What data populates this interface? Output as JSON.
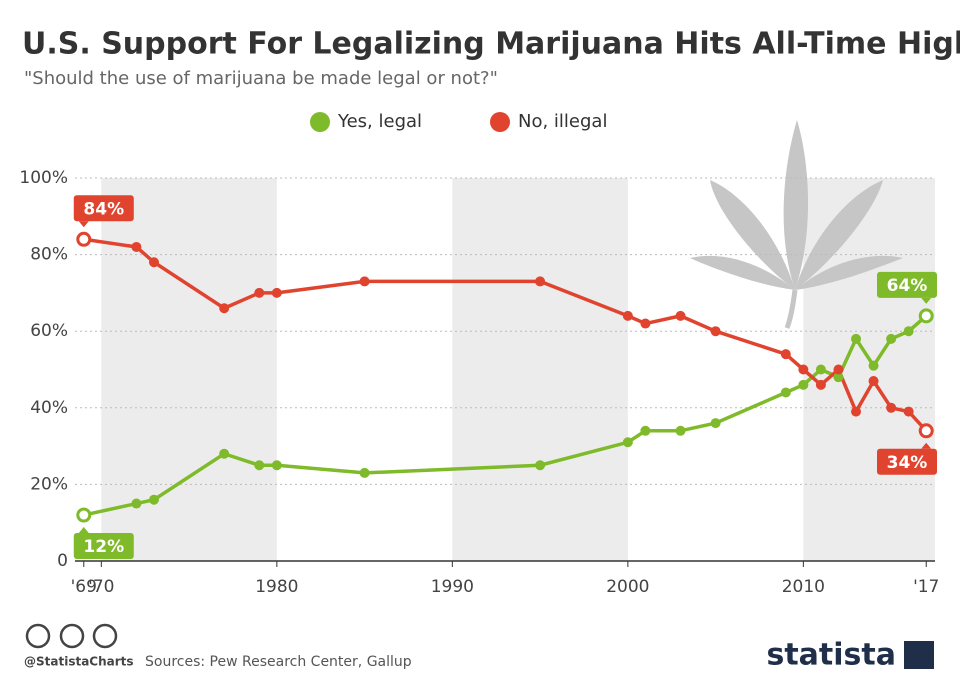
{
  "chart_data": {
    "type": "line",
    "title": "U.S. Support For Legalizing Marijuana Hits All-Time High",
    "subtitle": "\"Should the use of marijuana be made legal or not?\"",
    "x": [
      1969,
      1972,
      1973,
      1977,
      1979,
      1980,
      1985,
      1995,
      2000,
      2001,
      2003,
      2005,
      2009,
      2010,
      2011,
      2012,
      2013,
      2014,
      2015,
      2016,
      2017
    ],
    "series": [
      {
        "name": "Yes, legal",
        "color": "#7fba2a",
        "values": [
          12,
          15,
          16,
          28,
          25,
          25,
          23,
          25,
          31,
          34,
          34,
          36,
          44,
          46,
          50,
          48,
          58,
          51,
          58,
          60,
          64
        ],
        "value_labels": [
          "12%",
          null,
          null,
          null,
          null,
          null,
          null,
          null,
          null,
          null,
          null,
          null,
          null,
          null,
          null,
          null,
          null,
          null,
          null,
          null,
          "64%"
        ]
      },
      {
        "name": "No, illegal",
        "color": "#e0442f",
        "values": [
          84,
          82,
          78,
          66,
          70,
          70,
          73,
          73,
          64,
          62,
          64,
          60,
          54,
          50,
          46,
          50,
          39,
          47,
          40,
          39,
          34
        ],
        "value_labels": [
          "84%",
          null,
          null,
          null,
          null,
          null,
          null,
          null,
          null,
          null,
          null,
          null,
          null,
          null,
          null,
          null,
          null,
          null,
          null,
          null,
          "34%"
        ]
      }
    ],
    "xlim": [
      1968.5,
      2017.5
    ],
    "xticks": [
      {
        "value": 1969,
        "label": "'69"
      },
      {
        "value": 1970,
        "label": "'70"
      },
      1980,
      1990,
      2000,
      2010,
      {
        "value": 2017,
        "label": "'17"
      }
    ],
    "ylim": [
      0,
      100
    ],
    "yticks": [
      0,
      {
        "value": 20,
        "label": "20%"
      },
      {
        "value": 40,
        "label": "40%"
      },
      {
        "value": 60,
        "label": "60%"
      },
      {
        "value": 80,
        "label": "80%"
      },
      {
        "value": 100,
        "label": "100%"
      }
    ],
    "grid": true,
    "legend": "top"
  },
  "footer": {
    "handle": "@StatistaCharts",
    "source": "Sources: Pew Research Center, Gallup",
    "brand": "statista"
  }
}
